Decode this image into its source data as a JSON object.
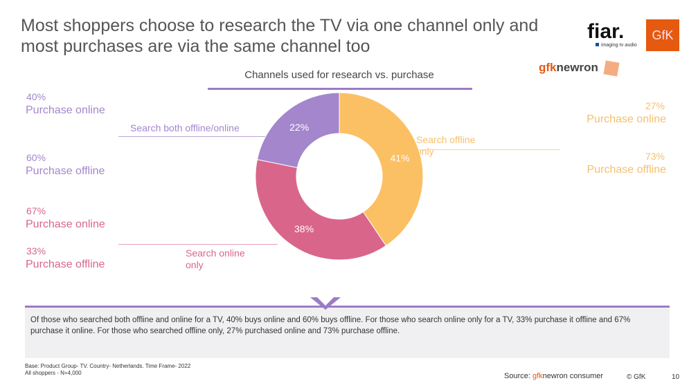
{
  "title": "Most shoppers choose to research the TV via one channel only  and most purchases are via the same channel too",
  "logos": {
    "fiar": "fiar.",
    "fiar_tagline": "imaging·tv·audio",
    "gfk": "GfK",
    "gfknewron_a": "gfk",
    "gfknewron_b": "newron"
  },
  "colors": {
    "offline_only": "#FBC063",
    "online_only": "#D9668A",
    "both": "#A386CC",
    "accent": "#9C7BC6",
    "brand": "#E55A0F"
  },
  "chart_data": {
    "type": "pie",
    "donut": true,
    "title": "Channels used for research vs. purchase",
    "slices": [
      {
        "name": "Search offline only",
        "value": 41,
        "label": "41%"
      },
      {
        "name": "Search online only",
        "value": 38,
        "label": "38%"
      },
      {
        "name": "Search both offline/online",
        "value": 22,
        "label": "22%"
      }
    ],
    "annotations": {
      "both": [
        {
          "pct": "40",
          "label": "Purchase online"
        },
        {
          "pct": "60",
          "label": "Purchase offline"
        }
      ],
      "online_only": [
        {
          "pct": "67",
          "label": "Purchase online"
        },
        {
          "pct": "33",
          "label": "Purchase offline"
        }
      ],
      "offline_only": [
        {
          "pct": "27",
          "label": "Purchase online"
        },
        {
          "pct": "73",
          "label": "Purchase offline"
        }
      ]
    }
  },
  "slice_labels": {
    "both": "Search both offline/online",
    "online_only": "Search online only",
    "offline_only": "Search offline only"
  },
  "pct_sign": "%",
  "summary": "Of those who searched both offline and online for a TV, 40% buys online and 60% buys offline. For those who search online only for a TV, 33% purchase it offline and 67% purchase it online. For those who searched offline only, 27% purchased online and 73% purchase offline.",
  "base": {
    "line1": "Base: Product Group-  TV. Country-  Netherlands. Time Frame-  2022",
    "line2": "All shoppers - N=4,000"
  },
  "footer": {
    "source_prefix": "Source: ",
    "source_brand": "gfk",
    "source_rest": "newron consumer",
    "copyright": "© GfK",
    "page": "10"
  }
}
